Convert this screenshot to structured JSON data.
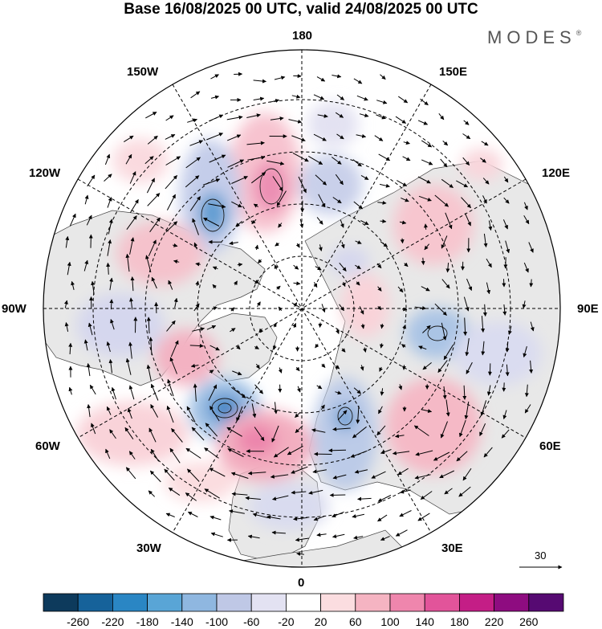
{
  "title": "Base 16/08/2025 00 UTC, valid 24/08/2025 00 UTC",
  "brand": {
    "name": "MODES",
    "mark": "®"
  },
  "longitude_labels": {
    "top": "180",
    "bottom": "0",
    "left": "90W",
    "right": "90E",
    "upper_left_150": "150W",
    "upper_left_120": "120W",
    "upper_right_150": "150E",
    "upper_right_120": "120E",
    "lower_left_60": "60W",
    "lower_left_30": "30W",
    "lower_right_60": "60E",
    "lower_right_30": "30E"
  },
  "reference_vector": {
    "value": "30"
  },
  "colorbar": {
    "labels": [
      "-260",
      "-220",
      "-180",
      "-140",
      "-100",
      "-60",
      "-20",
      "20",
      "60",
      "100",
      "140",
      "180",
      "220",
      "260"
    ],
    "colors": [
      "#0d3a5c",
      "#16629a",
      "#2a86c4",
      "#59a5d6",
      "#8fb7e0",
      "#bfc8e6",
      "#e3e2f2",
      "#ffffff",
      "#fbdde0",
      "#f5b4c2",
      "#ef86ad",
      "#e2549a",
      "#c41e86",
      "#8e0c80",
      "#560a72"
    ]
  },
  "anomaly_centers": [
    {
      "sign": "negative",
      "value": "-150",
      "color": "#5a9ad0"
    },
    {
      "sign": "negative",
      "value": "-100",
      "color": "#7aa7d8"
    },
    {
      "sign": "negative",
      "value": "-90",
      "color": "#8fb3de"
    },
    {
      "sign": "negative",
      "value": "-80",
      "color": "#9fbde2"
    },
    {
      "sign": "negative",
      "value": "-70",
      "color": "#a9c2e4"
    },
    {
      "sign": "negative",
      "value": "-50",
      "color": "#c6cfe9"
    },
    {
      "sign": "positive",
      "value": "130",
      "color": "#ec8fb4"
    },
    {
      "sign": "positive",
      "value": "120",
      "color": "#ee95b6"
    },
    {
      "sign": "positive",
      "value": "80",
      "color": "#f3aec0"
    },
    {
      "sign": "positive",
      "value": "60",
      "color": "#f7c6cf"
    },
    {
      "sign": "positive",
      "value": "60",
      "color": "#f7c6cf"
    },
    {
      "sign": "positive",
      "value": "40",
      "color": "#f9d3d9"
    }
  ]
}
